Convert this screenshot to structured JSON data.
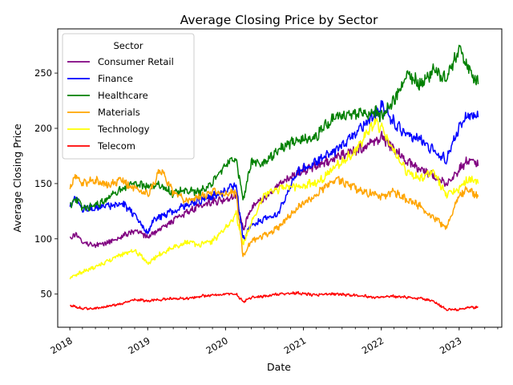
{
  "chart_data": {
    "type": "line",
    "title": "Average Closing Price by Sector",
    "xlabel": "Date",
    "ylabel": "Average Closing Price",
    "x_ticks": [
      "2018",
      "2019",
      "2020",
      "2021",
      "2022",
      "2023"
    ],
    "y_ticks": [
      50,
      100,
      150,
      200,
      250
    ],
    "xlim": [
      "2017-11-05",
      "2023-07-20"
    ],
    "ylim": [
      20,
      290
    ],
    "grid": false,
    "legend": {
      "title": "Sector",
      "placement": "top-left"
    },
    "series": [
      {
        "name": "Consumer Retail",
        "color": "#800080",
        "points": [
          [
            "2018-01-02",
            100
          ],
          [
            "2018-02-01",
            104
          ],
          [
            "2018-03-01",
            97
          ],
          [
            "2018-04-01",
            95
          ],
          [
            "2018-05-01",
            94
          ],
          [
            "2018-07-01",
            97
          ],
          [
            "2018-09-01",
            102
          ],
          [
            "2018-11-01",
            107
          ],
          [
            "2019-01-01",
            102
          ],
          [
            "2019-02-01",
            106
          ],
          [
            "2019-04-01",
            113
          ],
          [
            "2019-06-01",
            120
          ],
          [
            "2019-08-01",
            127
          ],
          [
            "2019-10-01",
            132
          ],
          [
            "2020-01-01",
            136
          ],
          [
            "2020-02-20",
            139
          ],
          [
            "2020-03-23",
            108
          ],
          [
            "2020-05-01",
            128
          ],
          [
            "2020-07-01",
            137
          ],
          [
            "2020-09-01",
            148
          ],
          [
            "2020-12-01",
            160
          ],
          [
            "2021-03-01",
            166
          ],
          [
            "2021-06-01",
            173
          ],
          [
            "2021-09-01",
            180
          ],
          [
            "2021-12-01",
            187
          ],
          [
            "2022-01-03",
            192
          ],
          [
            "2022-03-01",
            182
          ],
          [
            "2022-05-01",
            170
          ],
          [
            "2022-07-01",
            163
          ],
          [
            "2022-09-01",
            157
          ],
          [
            "2022-11-01",
            150
          ],
          [
            "2023-01-01",
            163
          ],
          [
            "2023-02-15",
            172
          ],
          [
            "2023-03-31",
            166
          ]
        ]
      },
      {
        "name": "Finance",
        "color": "#0000ff",
        "points": [
          [
            "2018-01-02",
            130
          ],
          [
            "2018-02-01",
            137
          ],
          [
            "2018-03-01",
            127
          ],
          [
            "2018-05-01",
            128
          ],
          [
            "2018-07-01",
            130
          ],
          [
            "2018-09-01",
            132
          ],
          [
            "2018-11-01",
            122
          ],
          [
            "2019-01-01",
            105
          ],
          [
            "2019-02-01",
            118
          ],
          [
            "2019-04-01",
            123
          ],
          [
            "2019-06-01",
            128
          ],
          [
            "2019-08-01",
            133
          ],
          [
            "2019-10-01",
            136
          ],
          [
            "2020-01-01",
            143
          ],
          [
            "2020-02-20",
            150
          ],
          [
            "2020-03-23",
            100
          ],
          [
            "2020-05-01",
            112
          ],
          [
            "2020-07-01",
            118
          ],
          [
            "2020-09-01",
            122
          ],
          [
            "2020-12-01",
            160
          ],
          [
            "2021-03-01",
            170
          ],
          [
            "2021-06-01",
            180
          ],
          [
            "2021-09-01",
            195
          ],
          [
            "2021-12-01",
            212
          ],
          [
            "2022-01-03",
            220
          ],
          [
            "2022-03-01",
            205
          ],
          [
            "2022-05-01",
            195
          ],
          [
            "2022-07-01",
            190
          ],
          [
            "2022-09-01",
            180
          ],
          [
            "2022-11-01",
            172
          ],
          [
            "2023-01-01",
            200
          ],
          [
            "2023-02-15",
            213
          ],
          [
            "2023-03-31",
            210
          ]
        ]
      },
      {
        "name": "Healthcare",
        "color": "#008000",
        "points": [
          [
            "2018-01-02",
            130
          ],
          [
            "2018-02-01",
            136
          ],
          [
            "2018-03-01",
            127
          ],
          [
            "2018-05-01",
            130
          ],
          [
            "2018-07-01",
            137
          ],
          [
            "2018-09-01",
            145
          ],
          [
            "2018-11-01",
            150
          ],
          [
            "2019-01-01",
            147
          ],
          [
            "2019-03-01",
            148
          ],
          [
            "2019-05-01",
            141
          ],
          [
            "2019-07-01",
            144
          ],
          [
            "2019-09-01",
            143
          ],
          [
            "2019-11-01",
            150
          ],
          [
            "2020-01-01",
            168
          ],
          [
            "2020-02-20",
            172
          ],
          [
            "2020-03-23",
            135
          ],
          [
            "2020-05-01",
            170
          ],
          [
            "2020-07-01",
            168
          ],
          [
            "2020-09-01",
            180
          ],
          [
            "2020-12-01",
            190
          ],
          [
            "2021-03-01",
            193
          ],
          [
            "2021-06-01",
            212
          ],
          [
            "2021-09-01",
            212
          ],
          [
            "2021-12-01",
            215
          ],
          [
            "2022-01-03",
            210
          ],
          [
            "2022-03-01",
            225
          ],
          [
            "2022-05-01",
            250
          ],
          [
            "2022-07-01",
            240
          ],
          [
            "2022-09-01",
            252
          ],
          [
            "2022-11-01",
            245
          ],
          [
            "2023-01-01",
            270
          ],
          [
            "2023-02-15",
            255
          ],
          [
            "2023-03-31",
            240
          ]
        ]
      },
      {
        "name": "Materials",
        "color": "#ffa500",
        "points": [
          [
            "2018-01-02",
            146
          ],
          [
            "2018-02-01",
            158
          ],
          [
            "2018-03-01",
            150
          ],
          [
            "2018-05-01",
            153
          ],
          [
            "2018-07-01",
            148
          ],
          [
            "2018-09-01",
            153
          ],
          [
            "2018-11-01",
            145
          ],
          [
            "2019-01-01",
            140
          ],
          [
            "2019-03-01",
            162
          ],
          [
            "2019-05-01",
            142
          ],
          [
            "2019-07-01",
            135
          ],
          [
            "2019-09-01",
            138
          ],
          [
            "2019-11-01",
            143
          ],
          [
            "2020-01-01",
            141
          ],
          [
            "2020-02-20",
            142
          ],
          [
            "2020-03-23",
            85
          ],
          [
            "2020-05-01",
            98
          ],
          [
            "2020-07-01",
            103
          ],
          [
            "2020-09-01",
            110
          ],
          [
            "2020-12-01",
            128
          ],
          [
            "2021-03-01",
            140
          ],
          [
            "2021-06-01",
            155
          ],
          [
            "2021-09-01",
            146
          ],
          [
            "2021-12-01",
            140
          ],
          [
            "2022-01-03",
            138
          ],
          [
            "2022-03-01",
            143
          ],
          [
            "2022-05-01",
            135
          ],
          [
            "2022-07-01",
            130
          ],
          [
            "2022-09-01",
            120
          ],
          [
            "2022-11-01",
            110
          ],
          [
            "2023-01-01",
            140
          ],
          [
            "2023-02-15",
            145
          ],
          [
            "2023-03-31",
            138
          ]
        ]
      },
      {
        "name": "Technology",
        "color": "#ffff00",
        "points": [
          [
            "2018-01-02",
            65
          ],
          [
            "2018-03-01",
            70
          ],
          [
            "2018-05-01",
            75
          ],
          [
            "2018-07-01",
            80
          ],
          [
            "2018-09-01",
            86
          ],
          [
            "2018-11-01",
            90
          ],
          [
            "2019-01-01",
            78
          ],
          [
            "2019-03-01",
            87
          ],
          [
            "2019-05-01",
            92
          ],
          [
            "2019-07-01",
            97
          ],
          [
            "2019-09-01",
            95
          ],
          [
            "2019-11-01",
            98
          ],
          [
            "2020-01-01",
            110
          ],
          [
            "2020-02-20",
            122
          ],
          [
            "2020-03-23",
            95
          ],
          [
            "2020-05-01",
            115
          ],
          [
            "2020-07-01",
            140
          ],
          [
            "2020-09-01",
            145
          ],
          [
            "2020-12-01",
            148
          ],
          [
            "2021-03-01",
            150
          ],
          [
            "2021-06-01",
            165
          ],
          [
            "2021-09-01",
            180
          ],
          [
            "2021-12-01",
            205
          ],
          [
            "2022-01-03",
            200
          ],
          [
            "2022-03-01",
            180
          ],
          [
            "2022-05-01",
            160
          ],
          [
            "2022-07-01",
            155
          ],
          [
            "2022-09-01",
            160
          ],
          [
            "2022-11-01",
            140
          ],
          [
            "2023-01-01",
            145
          ],
          [
            "2023-02-15",
            155
          ],
          [
            "2023-03-31",
            150
          ]
        ]
      },
      {
        "name": "Telecom",
        "color": "#ff0000",
        "points": [
          [
            "2018-01-02",
            40
          ],
          [
            "2018-03-01",
            37
          ],
          [
            "2018-05-01",
            37
          ],
          [
            "2018-07-01",
            39
          ],
          [
            "2018-09-01",
            41
          ],
          [
            "2018-11-01",
            45
          ],
          [
            "2019-01-01",
            44
          ],
          [
            "2019-03-01",
            45
          ],
          [
            "2019-05-01",
            46
          ],
          [
            "2019-07-01",
            46
          ],
          [
            "2019-09-01",
            48
          ],
          [
            "2019-11-01",
            49
          ],
          [
            "2020-01-01",
            50
          ],
          [
            "2020-02-20",
            50
          ],
          [
            "2020-03-23",
            43
          ],
          [
            "2020-05-01",
            47
          ],
          [
            "2020-07-01",
            48
          ],
          [
            "2020-09-01",
            50
          ],
          [
            "2020-12-01",
            51
          ],
          [
            "2021-03-01",
            49
          ],
          [
            "2021-06-01",
            50
          ],
          [
            "2021-09-01",
            49
          ],
          [
            "2021-12-01",
            47
          ],
          [
            "2022-01-03",
            48
          ],
          [
            "2022-03-01",
            48
          ],
          [
            "2022-05-01",
            47
          ],
          [
            "2022-07-01",
            46
          ],
          [
            "2022-09-01",
            44
          ],
          [
            "2022-11-01",
            36
          ],
          [
            "2023-01-01",
            36
          ],
          [
            "2023-02-15",
            38
          ],
          [
            "2023-03-31",
            38
          ]
        ]
      }
    ]
  }
}
